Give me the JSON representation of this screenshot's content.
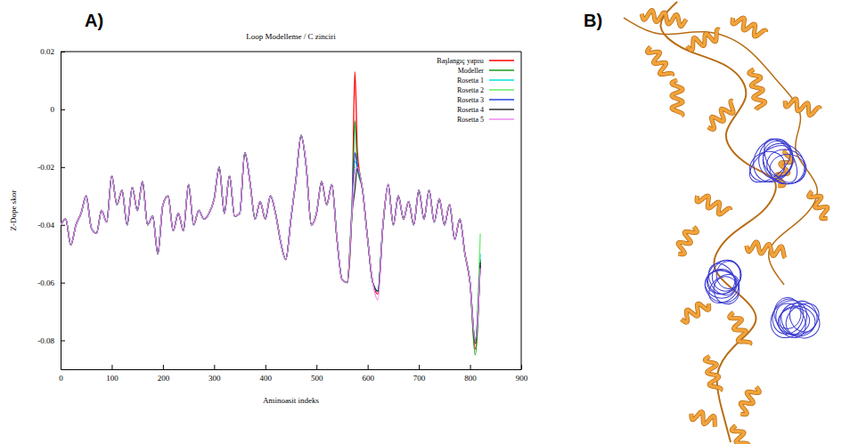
{
  "panels": {
    "a": "A)",
    "b": "B)"
  },
  "chart_data": {
    "type": "line",
    "title": "Loop Modelleme / C zinciri",
    "x_label": "Aminoasit indeks",
    "y_label": "Z-Dope skor",
    "xlim": [
      0,
      900
    ],
    "xticks": [
      0,
      100,
      200,
      300,
      400,
      500,
      600,
      700,
      800,
      900
    ],
    "ylim": [
      -0.09,
      0.02
    ],
    "yticks": [
      -0.08,
      -0.06,
      -0.04,
      -0.02,
      0,
      0.02
    ],
    "grid": false,
    "legend": "top-right",
    "x": [
      0,
      10,
      20,
      30,
      40,
      50,
      60,
      70,
      80,
      90,
      100,
      110,
      120,
      130,
      140,
      150,
      160,
      170,
      180,
      190,
      200,
      210,
      220,
      230,
      240,
      250,
      260,
      270,
      280,
      290,
      300,
      310,
      320,
      330,
      340,
      350,
      360,
      370,
      380,
      390,
      400,
      410,
      420,
      430,
      440,
      450,
      460,
      470,
      480,
      490,
      500,
      510,
      520,
      530,
      540,
      550,
      560,
      570,
      575,
      580,
      590,
      600,
      610,
      620,
      630,
      640,
      650,
      660,
      670,
      680,
      690,
      700,
      710,
      720,
      730,
      740,
      750,
      760,
      770,
      780,
      790,
      800,
      810,
      820
    ],
    "series": [
      {
        "name": "Başlangıç yapısı",
        "color": "#ff0000",
        "values": [
          -0.04,
          -0.038,
          -0.047,
          -0.04,
          -0.036,
          -0.03,
          -0.041,
          -0.043,
          -0.035,
          -0.039,
          -0.023,
          -0.033,
          -0.028,
          -0.04,
          -0.027,
          -0.035,
          -0.025,
          -0.04,
          -0.037,
          -0.05,
          -0.033,
          -0.03,
          -0.042,
          -0.036,
          -0.042,
          -0.026,
          -0.04,
          -0.035,
          -0.038,
          -0.036,
          -0.031,
          -0.02,
          -0.036,
          -0.023,
          -0.037,
          -0.036,
          -0.015,
          -0.025,
          -0.038,
          -0.032,
          -0.038,
          -0.03,
          -0.036,
          -0.046,
          -0.052,
          -0.038,
          -0.024,
          -0.009,
          -0.02,
          -0.04,
          -0.036,
          -0.025,
          -0.033,
          -0.026,
          -0.045,
          -0.059,
          -0.06,
          -0.03,
          0.013,
          -0.015,
          -0.028,
          -0.045,
          -0.06,
          -0.064,
          -0.04,
          -0.026,
          -0.04,
          -0.03,
          -0.038,
          -0.032,
          -0.04,
          -0.028,
          -0.038,
          -0.028,
          -0.039,
          -0.031,
          -0.04,
          -0.033,
          -0.045,
          -0.038,
          -0.05,
          -0.06,
          -0.083,
          -0.052
        ]
      },
      {
        "name": "Modeller",
        "color": "#1a9a1a",
        "values": [
          -0.04,
          -0.038,
          -0.047,
          -0.04,
          -0.036,
          -0.03,
          -0.041,
          -0.043,
          -0.035,
          -0.039,
          -0.023,
          -0.033,
          -0.028,
          -0.04,
          -0.027,
          -0.035,
          -0.025,
          -0.04,
          -0.037,
          -0.05,
          -0.033,
          -0.03,
          -0.042,
          -0.036,
          -0.042,
          -0.026,
          -0.04,
          -0.035,
          -0.038,
          -0.036,
          -0.031,
          -0.02,
          -0.036,
          -0.023,
          -0.037,
          -0.036,
          -0.015,
          -0.025,
          -0.038,
          -0.032,
          -0.038,
          -0.03,
          -0.036,
          -0.046,
          -0.052,
          -0.038,
          -0.024,
          -0.009,
          -0.02,
          -0.04,
          -0.036,
          -0.025,
          -0.033,
          -0.026,
          -0.045,
          -0.059,
          -0.06,
          -0.032,
          -0.004,
          -0.02,
          -0.028,
          -0.045,
          -0.06,
          -0.063,
          -0.04,
          -0.026,
          -0.04,
          -0.03,
          -0.038,
          -0.032,
          -0.04,
          -0.028,
          -0.038,
          -0.028,
          -0.039,
          -0.031,
          -0.04,
          -0.033,
          -0.045,
          -0.038,
          -0.05,
          -0.06,
          -0.085,
          -0.052
        ]
      },
      {
        "name": "Rosetta 1",
        "color": "#00e0e0",
        "values": [
          -0.04,
          -0.038,
          -0.047,
          -0.04,
          -0.036,
          -0.03,
          -0.041,
          -0.043,
          -0.035,
          -0.039,
          -0.023,
          -0.033,
          -0.028,
          -0.04,
          -0.027,
          -0.035,
          -0.025,
          -0.04,
          -0.037,
          -0.05,
          -0.033,
          -0.03,
          -0.042,
          -0.036,
          -0.042,
          -0.026,
          -0.04,
          -0.035,
          -0.038,
          -0.036,
          -0.031,
          -0.02,
          -0.036,
          -0.023,
          -0.037,
          -0.036,
          -0.015,
          -0.025,
          -0.038,
          -0.032,
          -0.038,
          -0.03,
          -0.036,
          -0.046,
          -0.052,
          -0.038,
          -0.024,
          -0.009,
          -0.02,
          -0.04,
          -0.036,
          -0.025,
          -0.033,
          -0.026,
          -0.045,
          -0.059,
          -0.06,
          -0.033,
          -0.018,
          -0.02,
          -0.028,
          -0.045,
          -0.06,
          -0.063,
          -0.04,
          -0.026,
          -0.04,
          -0.03,
          -0.038,
          -0.032,
          -0.04,
          -0.028,
          -0.038,
          -0.028,
          -0.039,
          -0.031,
          -0.04,
          -0.033,
          -0.045,
          -0.038,
          -0.05,
          -0.06,
          -0.08,
          -0.05
        ]
      },
      {
        "name": "Rosetta 2",
        "color": "#66ee66",
        "values": [
          -0.04,
          -0.038,
          -0.047,
          -0.04,
          -0.036,
          -0.03,
          -0.041,
          -0.043,
          -0.035,
          -0.039,
          -0.023,
          -0.033,
          -0.028,
          -0.04,
          -0.027,
          -0.035,
          -0.025,
          -0.04,
          -0.037,
          -0.05,
          -0.033,
          -0.03,
          -0.042,
          -0.036,
          -0.042,
          -0.026,
          -0.04,
          -0.035,
          -0.038,
          -0.036,
          -0.031,
          -0.02,
          -0.036,
          -0.023,
          -0.037,
          -0.036,
          -0.015,
          -0.025,
          -0.038,
          -0.032,
          -0.038,
          -0.03,
          -0.036,
          -0.046,
          -0.052,
          -0.038,
          -0.024,
          -0.009,
          -0.02,
          -0.04,
          -0.036,
          -0.025,
          -0.033,
          -0.026,
          -0.045,
          -0.059,
          -0.06,
          -0.031,
          -0.02,
          -0.02,
          -0.028,
          -0.045,
          -0.06,
          -0.063,
          -0.04,
          -0.026,
          -0.04,
          -0.03,
          -0.038,
          -0.032,
          -0.04,
          -0.028,
          -0.038,
          -0.028,
          -0.039,
          -0.031,
          -0.04,
          -0.033,
          -0.045,
          -0.038,
          -0.05,
          -0.06,
          -0.08,
          -0.043
        ]
      },
      {
        "name": "Rosetta 3",
        "color": "#2244dd",
        "values": [
          -0.04,
          -0.038,
          -0.047,
          -0.04,
          -0.036,
          -0.03,
          -0.041,
          -0.043,
          -0.035,
          -0.039,
          -0.023,
          -0.033,
          -0.028,
          -0.04,
          -0.027,
          -0.035,
          -0.025,
          -0.04,
          -0.037,
          -0.05,
          -0.033,
          -0.03,
          -0.042,
          -0.036,
          -0.042,
          -0.026,
          -0.04,
          -0.035,
          -0.038,
          -0.036,
          -0.031,
          -0.02,
          -0.036,
          -0.023,
          -0.037,
          -0.036,
          -0.015,
          -0.025,
          -0.038,
          -0.032,
          -0.038,
          -0.03,
          -0.036,
          -0.046,
          -0.052,
          -0.038,
          -0.024,
          -0.009,
          -0.02,
          -0.04,
          -0.036,
          -0.025,
          -0.033,
          -0.026,
          -0.045,
          -0.059,
          -0.06,
          -0.032,
          -0.015,
          -0.02,
          -0.028,
          -0.045,
          -0.06,
          -0.063,
          -0.04,
          -0.026,
          -0.04,
          -0.03,
          -0.038,
          -0.032,
          -0.04,
          -0.028,
          -0.038,
          -0.028,
          -0.039,
          -0.031,
          -0.04,
          -0.033,
          -0.045,
          -0.038,
          -0.05,
          -0.06,
          -0.08,
          -0.054
        ]
      },
      {
        "name": "Rosetta 4",
        "color": "#333333",
        "values": [
          -0.04,
          -0.038,
          -0.047,
          -0.04,
          -0.036,
          -0.03,
          -0.041,
          -0.043,
          -0.035,
          -0.039,
          -0.023,
          -0.033,
          -0.028,
          -0.04,
          -0.027,
          -0.035,
          -0.025,
          -0.04,
          -0.037,
          -0.05,
          -0.033,
          -0.03,
          -0.042,
          -0.036,
          -0.042,
          -0.026,
          -0.04,
          -0.035,
          -0.038,
          -0.036,
          -0.031,
          -0.02,
          -0.036,
          -0.023,
          -0.037,
          -0.036,
          -0.015,
          -0.025,
          -0.038,
          -0.032,
          -0.038,
          -0.03,
          -0.036,
          -0.046,
          -0.052,
          -0.038,
          -0.024,
          -0.009,
          -0.02,
          -0.04,
          -0.036,
          -0.025,
          -0.033,
          -0.026,
          -0.045,
          -0.059,
          -0.06,
          -0.035,
          -0.028,
          -0.02,
          -0.028,
          -0.045,
          -0.06,
          -0.063,
          -0.04,
          -0.026,
          -0.04,
          -0.03,
          -0.038,
          -0.032,
          -0.04,
          -0.028,
          -0.038,
          -0.028,
          -0.039,
          -0.031,
          -0.04,
          -0.033,
          -0.045,
          -0.038,
          -0.05,
          -0.06,
          -0.081,
          -0.053
        ]
      },
      {
        "name": "Rosetta 5",
        "color": "#ee88ee",
        "values": [
          -0.04,
          -0.038,
          -0.047,
          -0.04,
          -0.036,
          -0.03,
          -0.041,
          -0.043,
          -0.035,
          -0.039,
          -0.023,
          -0.033,
          -0.028,
          -0.04,
          -0.027,
          -0.035,
          -0.025,
          -0.04,
          -0.037,
          -0.05,
          -0.033,
          -0.03,
          -0.042,
          -0.036,
          -0.042,
          -0.026,
          -0.04,
          -0.035,
          -0.038,
          -0.036,
          -0.031,
          -0.02,
          -0.036,
          -0.023,
          -0.037,
          -0.036,
          -0.015,
          -0.025,
          -0.038,
          -0.032,
          -0.038,
          -0.03,
          -0.036,
          -0.046,
          -0.052,
          -0.038,
          -0.024,
          -0.009,
          -0.02,
          -0.04,
          -0.036,
          -0.025,
          -0.033,
          -0.026,
          -0.045,
          -0.059,
          -0.06,
          -0.034,
          -0.022,
          -0.02,
          -0.028,
          -0.045,
          -0.06,
          -0.066,
          -0.04,
          -0.026,
          -0.04,
          -0.03,
          -0.038,
          -0.032,
          -0.04,
          -0.028,
          -0.038,
          -0.028,
          -0.039,
          -0.031,
          -0.04,
          -0.033,
          -0.045,
          -0.038,
          -0.05,
          -0.06,
          -0.08,
          -0.055
        ]
      }
    ]
  }
}
